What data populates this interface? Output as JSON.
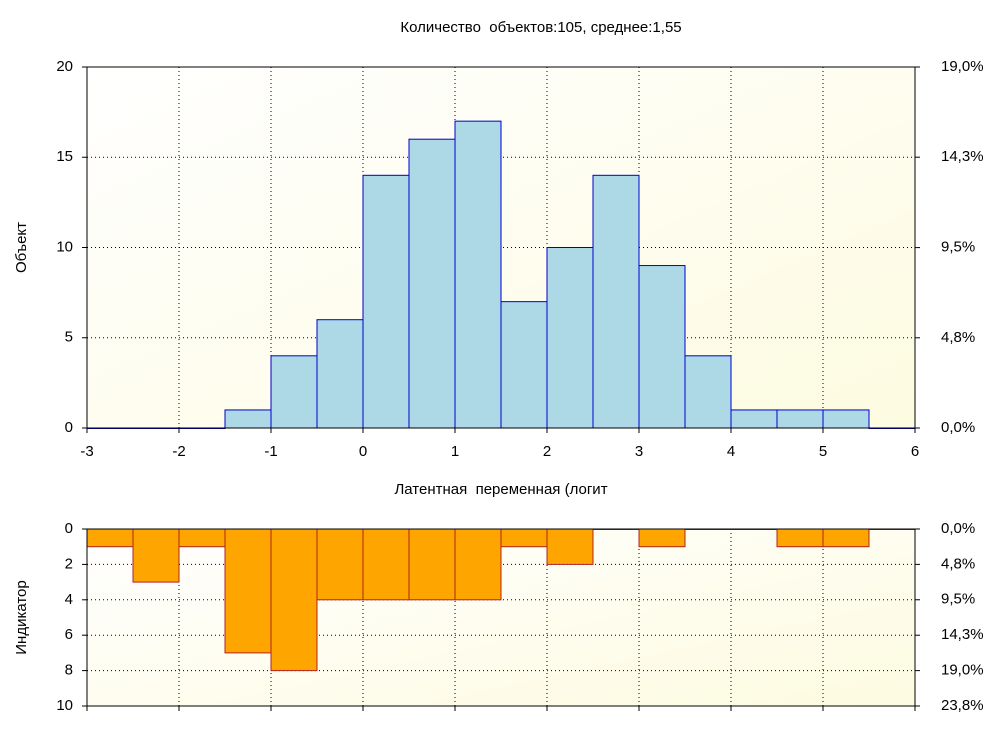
{
  "chart_data": [
    {
      "type": "histogram",
      "title": "Количество  объектов:105, среднее:1,55",
      "xlabel": "Латентная  переменная (логит",
      "ylabel": "Объект",
      "bins": [
        -3,
        -2.5,
        -2,
        -1.5,
        -1,
        -0.5,
        0,
        0.5,
        1,
        1.5,
        2,
        2.5,
        3,
        3.5,
        4,
        4.5,
        5,
        5.5,
        6
      ],
      "values": [
        0,
        0,
        0,
        1,
        4,
        6,
        14,
        16,
        17,
        7,
        10,
        14,
        9,
        4,
        1,
        1,
        1,
        0
      ],
      "color": "#add8e6",
      "edgecolor": "#0000cd",
      "xlim": [
        -3,
        6
      ],
      "xticks": [
        -3,
        -2,
        -1,
        0,
        1,
        2,
        3,
        4,
        5,
        6
      ],
      "ylim": [
        0,
        20
      ],
      "yticks": [
        0,
        5,
        10,
        15,
        20
      ],
      "y2lim": [
        0,
        19.05
      ],
      "y2ticks": [
        {
          "value": 0,
          "label": "0,0%"
        },
        {
          "value": 4.76,
          "label": "4,8%"
        },
        {
          "value": 9.52,
          "label": "9,5%"
        },
        {
          "value": 14.29,
          "label": "14,3%"
        },
        {
          "value": 19.05,
          "label": "19,0%"
        }
      ],
      "grid": true,
      "inverted": false,
      "x_tick_labels": true
    },
    {
      "type": "histogram",
      "ylabel": "Индикатор",
      "bins": [
        -3,
        -2.5,
        -2,
        -1.5,
        -1,
        -0.5,
        0,
        0.5,
        1,
        1.5,
        2,
        2.5,
        3,
        3.5,
        4,
        4.5,
        5,
        5.5,
        6
      ],
      "values": [
        1,
        3,
        1,
        7,
        8,
        4,
        4,
        4,
        4,
        1,
        2,
        0,
        1,
        0,
        0,
        1,
        1,
        0
      ],
      "color": "#ffa500",
      "edgecolor": "#b22222",
      "xlim": [
        -3,
        6
      ],
      "xticks": [
        -3,
        -2,
        -1,
        0,
        1,
        2,
        3,
        4,
        5,
        6
      ],
      "ylim": [
        0,
        10
      ],
      "yticks": [
        0,
        2,
        4,
        6,
        8,
        10
      ],
      "y2lim": [
        0,
        23.81
      ],
      "y2ticks": [
        {
          "value": 0,
          "label": "0,0%"
        },
        {
          "value": 4.76,
          "label": "4,8%"
        },
        {
          "value": 9.52,
          "label": "9,5%"
        },
        {
          "value": 14.29,
          "label": "14,3%"
        },
        {
          "value": 19.05,
          "label": "19,0%"
        },
        {
          "value": 23.81,
          "label": "23,8%"
        }
      ],
      "grid": true,
      "inverted": true,
      "x_tick_labels": false
    }
  ]
}
